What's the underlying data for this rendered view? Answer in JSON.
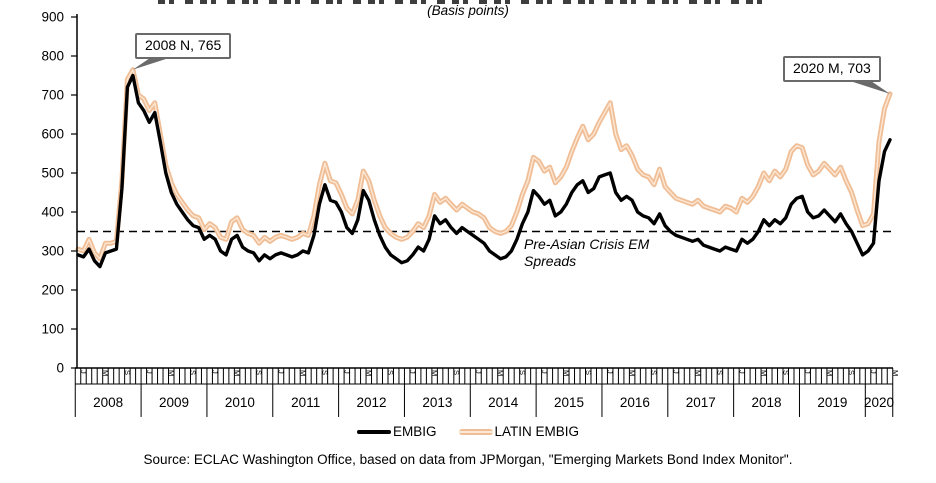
{
  "chart_data": {
    "type": "line",
    "subtitle": "(Basis points)",
    "ylim": [
      0,
      900
    ],
    "ytick_step": 100,
    "grid": false,
    "x": {
      "start_year": 2008,
      "start_month": 1,
      "n_months": 149,
      "year_labels": [
        "2008",
        "2009",
        "2010",
        "2011",
        "2012",
        "2013",
        "2014",
        "2015",
        "2016",
        "2017",
        "2018",
        "2019",
        "2020"
      ],
      "month_labels": [
        {
          "offset": 0,
          "letter": "J"
        },
        {
          "offset": 4,
          "letter": "M"
        },
        {
          "offset": 8,
          "letter": "S"
        }
      ]
    },
    "reference_line": {
      "value": 350,
      "style": "dashed",
      "label": "Pre-Asian Crisis EM Spreads"
    },
    "series": [
      {
        "name": "EMBIG",
        "color": "#000000",
        "values": [
          290,
          285,
          305,
          275,
          260,
          295,
          300,
          305,
          460,
          720,
          750,
          680,
          660,
          630,
          655,
          580,
          500,
          450,
          420,
          400,
          380,
          365,
          360,
          330,
          340,
          330,
          300,
          290,
          330,
          340,
          310,
          300,
          295,
          275,
          290,
          280,
          290,
          295,
          290,
          285,
          290,
          300,
          295,
          340,
          420,
          470,
          430,
          425,
          400,
          360,
          345,
          380,
          455,
          430,
          380,
          340,
          310,
          290,
          280,
          270,
          275,
          290,
          310,
          300,
          330,
          390,
          370,
          380,
          360,
          345,
          360,
          350,
          340,
          330,
          320,
          300,
          290,
          280,
          285,
          300,
          330,
          370,
          400,
          455,
          440,
          420,
          430,
          390,
          400,
          420,
          450,
          470,
          480,
          450,
          460,
          490,
          495,
          500,
          450,
          430,
          440,
          430,
          400,
          390,
          385,
          370,
          395,
          365,
          350,
          340,
          335,
          330,
          325,
          330,
          315,
          310,
          305,
          300,
          310,
          305,
          300,
          330,
          320,
          330,
          350,
          380,
          365,
          380,
          370,
          385,
          420,
          435,
          440,
          400,
          385,
          390,
          405,
          390,
          375,
          395,
          370,
          350,
          320,
          290,
          300,
          320,
          480,
          555,
          585
        ]
      },
      {
        "name": "LATIN EMBIG",
        "color": "#F0BE96",
        "inner_color": "#FBE7D4",
        "values": [
          305,
          300,
          330,
          295,
          280,
          320,
          320,
          325,
          480,
          740,
          765,
          700,
          690,
          660,
          680,
          600,
          520,
          475,
          445,
          425,
          405,
          390,
          385,
          355,
          370,
          360,
          335,
          330,
          375,
          385,
          355,
          345,
          340,
          320,
          335,
          325,
          335,
          340,
          335,
          330,
          335,
          345,
          340,
          390,
          470,
          525,
          480,
          475,
          445,
          410,
          395,
          430,
          505,
          480,
          430,
          390,
          360,
          345,
          335,
          330,
          335,
          350,
          370,
          360,
          390,
          445,
          425,
          435,
          420,
          405,
          420,
          410,
          400,
          395,
          385,
          360,
          350,
          345,
          350,
          365,
          400,
          445,
          480,
          540,
          530,
          505,
          515,
          475,
          490,
          515,
          555,
          590,
          620,
          585,
          600,
          630,
          655,
          680,
          600,
          560,
          570,
          545,
          510,
          495,
          490,
          470,
          510,
          465,
          450,
          435,
          430,
          425,
          420,
          430,
          415,
          410,
          405,
          400,
          415,
          410,
          400,
          435,
          425,
          440,
          465,
          500,
          480,
          505,
          490,
          510,
          555,
          570,
          565,
          520,
          495,
          505,
          525,
          510,
          495,
          515,
          480,
          450,
          405,
          365,
          370,
          395,
          580,
          665,
          703
        ]
      }
    ],
    "annotations": [
      {
        "label": "2008 N, 765",
        "series": "LATIN EMBIG",
        "month_index": 10,
        "value": 765
      },
      {
        "label": "2020 M, 703",
        "series": "LATIN EMBIG",
        "month_index": 148,
        "value": 703
      }
    ],
    "legend": [
      "EMBIG",
      "LATIN EMBIG"
    ],
    "source": "Source: ECLAC Washington Office, based on data from JPMorgan, \"Emerging Markets Bond Index Monitor\"."
  }
}
